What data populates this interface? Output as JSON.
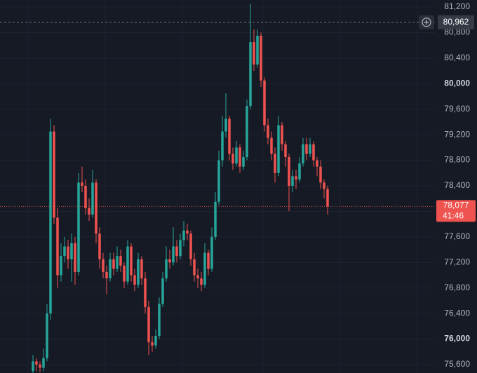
{
  "chart_data": {
    "type": "candlestick",
    "open": [
      75500,
      75650,
      75600,
      75550,
      75700,
      76400,
      79250,
      77900,
      77000,
      77300,
      77450,
      77250,
      77500,
      77050,
      78450,
      78400,
      78050,
      77950,
      78450,
      77650,
      77250,
      77050,
      76950,
      77250,
      77100,
      77300,
      77150,
      76900,
      77450,
      77000,
      76850,
      77250,
      76950,
      76500,
      75950,
      75900,
      76050,
      76550,
      76950,
      77250,
      77200,
      77450,
      77300,
      77550,
      77700,
      77650,
      77250,
      77000,
      76950,
      76850,
      77350,
      77100,
      77600,
      78150,
      78800,
      79250,
      79450,
      78900,
      78750,
      79000,
      78700,
      78850,
      79650,
      80650,
      80300,
      80750,
      80050,
      79350,
      79150,
      78900,
      78600,
      79350,
      79050,
      78850,
      78400,
      78550,
      78500,
      78750,
      79050,
      78900,
      79050,
      78800,
      78700,
      78450,
      78350
    ],
    "high": [
      75750,
      75700,
      75650,
      75850,
      76550,
      79450,
      79350,
      78050,
      77500,
      77600,
      77550,
      77650,
      77600,
      78600,
      78700,
      78500,
      78200,
      78650,
      78500,
      77750,
      77350,
      77150,
      77350,
      77350,
      77450,
      77400,
      77200,
      77550,
      77500,
      77100,
      77350,
      77300,
      77050,
      76600,
      76050,
      76150,
      76650,
      77050,
      77450,
      77400,
      77750,
      77550,
      77650,
      77850,
      77800,
      77700,
      77350,
      77100,
      77050,
      77500,
      77400,
      77750,
      78300,
      78950,
      79500,
      79850,
      79500,
      79000,
      79100,
      79050,
      78950,
      79750,
      81250,
      80850,
      80850,
      80800,
      80100,
      79450,
      79250,
      79000,
      79500,
      79400,
      79100,
      78900,
      78650,
      78650,
      78850,
      79150,
      79150,
      79150,
      79100,
      78850,
      78800,
      78500,
      78400
    ],
    "low": [
      75450,
      75500,
      75480,
      75500,
      75650,
      76300,
      77800,
      76800,
      76900,
      77200,
      77100,
      76900,
      76850,
      77000,
      78300,
      77950,
      77850,
      77900,
      77500,
      77100,
      76950,
      76700,
      76900,
      77000,
      77050,
      77050,
      76800,
      76850,
      76900,
      76750,
      76800,
      76850,
      76400,
      75750,
      75800,
      75850,
      76000,
      76500,
      76900,
      77100,
      77150,
      77200,
      77250,
      77450,
      77550,
      77150,
      76900,
      76800,
      76750,
      76800,
      77000,
      77050,
      77550,
      78100,
      78700,
      79150,
      78800,
      78650,
      78700,
      78600,
      78650,
      78800,
      79600,
      80200,
      80250,
      79950,
      79250,
      79050,
      78800,
      78450,
      78550,
      78950,
      78700,
      78000,
      78300,
      78350,
      78450,
      78700,
      78800,
      78850,
      78700,
      78550,
      78350,
      78200,
      77950
    ],
    "close": [
      75650,
      75600,
      75550,
      75700,
      76400,
      79250,
      77900,
      77000,
      77300,
      77450,
      77250,
      77500,
      77050,
      78450,
      78400,
      78050,
      77950,
      78450,
      77650,
      77250,
      77050,
      76950,
      77250,
      77100,
      77300,
      77150,
      76900,
      77450,
      77000,
      76850,
      77250,
      76950,
      76500,
      75950,
      75900,
      76050,
      76550,
      76950,
      77250,
      77200,
      77450,
      77300,
      77550,
      77700,
      77650,
      77250,
      77000,
      76950,
      76850,
      77350,
      77100,
      77600,
      78150,
      78800,
      79250,
      79450,
      78900,
      78750,
      79000,
      78700,
      78850,
      79650,
      80650,
      80300,
      80750,
      80050,
      79350,
      79150,
      78900,
      78600,
      79350,
      79050,
      78850,
      78400,
      78550,
      78500,
      78750,
      79050,
      78900,
      79050,
      78800,
      78700,
      78450,
      78350,
      78077
    ],
    "up_color": "#26a69a",
    "down_color": "#ef5350",
    "ylim": [
      75468,
      81310
    ],
    "yticks": [
      {
        "value": 75600,
        "label": "75,600"
      },
      {
        "value": 76000,
        "label": "76,000"
      },
      {
        "value": 76400,
        "label": "76,400"
      },
      {
        "value": 76800,
        "label": "76,800"
      },
      {
        "value": 77200,
        "label": "77,200"
      },
      {
        "value": 77600,
        "label": "77,600"
      },
      {
        "value": 78000,
        "label": "78,000"
      },
      {
        "value": 78400,
        "label": "78,400"
      },
      {
        "value": 78800,
        "label": "78,800"
      },
      {
        "value": 79200,
        "label": "79,200"
      },
      {
        "value": 79600,
        "label": "79,600"
      },
      {
        "value": 80000,
        "label": "80,000"
      },
      {
        "value": 80400,
        "label": "80,400"
      },
      {
        "value": 80800,
        "label": "80,800"
      },
      {
        "value": 81200,
        "label": "81,200"
      }
    ],
    "grid": true,
    "last_price": {
      "value": 78077,
      "label": "78,077"
    },
    "countdown": "41:46",
    "crosshair": {
      "value": 80962,
      "label": "80,962"
    }
  }
}
